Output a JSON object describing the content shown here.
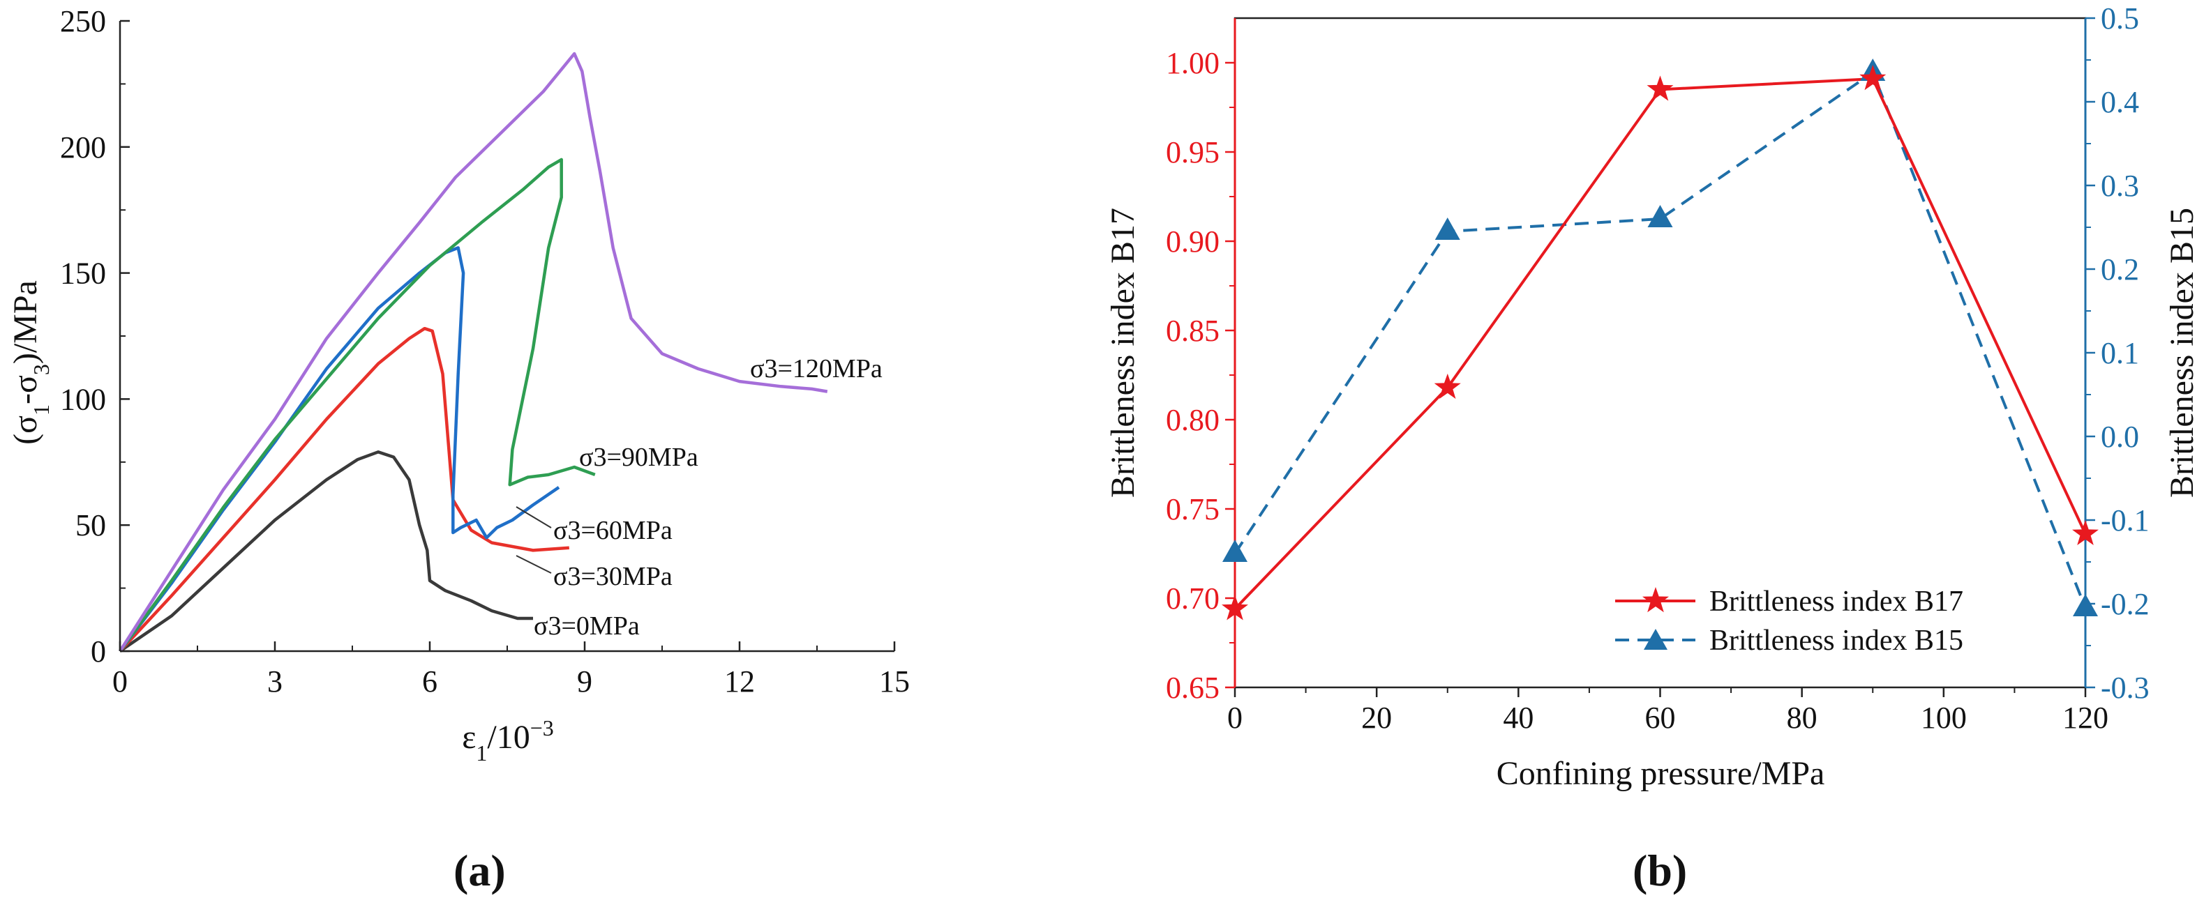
{
  "panels": {
    "a": "(a)",
    "b": "(b)"
  },
  "chart_data": [
    {
      "type": "line",
      "panel": "(a)",
      "title": "",
      "xlabel_main": "ε",
      "xlabel_sub": "1",
      "xlabel_rest": "/10",
      "xlabel_sup": "−3",
      "ylabel": "(σ1-σ3)/MPa",
      "ylabel_parts": {
        "open": "(σ",
        "sub1": "1",
        "mid": "-σ",
        "sub3": "3",
        "close": ")/MPa"
      },
      "xlim": [
        0,
        15
      ],
      "ylim": [
        0,
        250
      ],
      "xticks": [
        0,
        3,
        6,
        9,
        12,
        15
      ],
      "yticks": [
        0,
        50,
        100,
        150,
        200,
        250
      ],
      "legend": "none (inline labels)",
      "grid": false,
      "series": [
        {
          "name": "σ3=0MPa",
          "color": "#3a3a3a",
          "points": [
            [
              0,
              0
            ],
            [
              1,
              14
            ],
            [
              2,
              33
            ],
            [
              3,
              52
            ],
            [
              4,
              68
            ],
            [
              4.6,
              76
            ],
            [
              5,
              79
            ],
            [
              5.3,
              77
            ],
            [
              5.6,
              68
            ],
            [
              5.8,
              50
            ],
            [
              5.95,
              40
            ],
            [
              6,
              28
            ],
            [
              6.3,
              24
            ],
            [
              6.8,
              20
            ],
            [
              7.2,
              16
            ],
            [
              7.7,
              13
            ],
            [
              8,
              13
            ]
          ]
        },
        {
          "name": "σ3=30MPa",
          "color": "#e8312a",
          "points": [
            [
              0,
              0
            ],
            [
              1,
              22
            ],
            [
              2,
              45
            ],
            [
              3,
              68
            ],
            [
              4,
              92
            ],
            [
              5,
              114
            ],
            [
              5.6,
              124
            ],
            [
              5.9,
              128
            ],
            [
              6.05,
              127
            ],
            [
              6.25,
              110
            ],
            [
              6.45,
              60
            ],
            [
              6.8,
              48
            ],
            [
              7.2,
              43
            ],
            [
              8,
              40
            ],
            [
              8.7,
              41
            ]
          ]
        },
        {
          "name": "σ3=60MPa",
          "color": "#1f6fc8",
          "points": [
            [
              0,
              0
            ],
            [
              1,
              27
            ],
            [
              2,
              56
            ],
            [
              3,
              83
            ],
            [
              4,
              112
            ],
            [
              5,
              136
            ],
            [
              5.8,
              150
            ],
            [
              6.3,
              158
            ],
            [
              6.55,
              160
            ],
            [
              6.65,
              150
            ],
            [
              6.55,
              110
            ],
            [
              6.45,
              62
            ],
            [
              6.45,
              47
            ],
            [
              6.6,
              49
            ],
            [
              6.9,
              52
            ],
            [
              7.1,
              45
            ],
            [
              7.3,
              49
            ],
            [
              7.6,
              52
            ],
            [
              8,
              58
            ],
            [
              8.5,
              65
            ]
          ]
        },
        {
          "name": "σ3=90MPa",
          "color": "#2e9e52",
          "points": [
            [
              0,
              0
            ],
            [
              1,
              28
            ],
            [
              2,
              57
            ],
            [
              3,
              84
            ],
            [
              4,
              108
            ],
            [
              5,
              132
            ],
            [
              6,
              153
            ],
            [
              7,
              170
            ],
            [
              7.8,
              183
            ],
            [
              8.3,
              192
            ],
            [
              8.55,
              195
            ],
            [
              8.55,
              180
            ],
            [
              8.3,
              160
            ],
            [
              8,
              120
            ],
            [
              7.6,
              80
            ],
            [
              7.55,
              66
            ],
            [
              7.9,
              69
            ],
            [
              8.3,
              70
            ],
            [
              8.8,
              73
            ],
            [
              9.2,
              70
            ]
          ]
        },
        {
          "name": "σ3=120MPa",
          "color": "#a56ed9",
          "points": [
            [
              0,
              0
            ],
            [
              1,
              32
            ],
            [
              2,
              64
            ],
            [
              3,
              92
            ],
            [
              4,
              124
            ],
            [
              5,
              150
            ],
            [
              5.8,
              170
            ],
            [
              6.5,
              188
            ],
            [
              7.4,
              206
            ],
            [
              8.2,
              222
            ],
            [
              8.8,
              237
            ],
            [
              8.95,
              230
            ],
            [
              9.1,
              212
            ],
            [
              9.3,
              190
            ],
            [
              9.55,
              160
            ],
            [
              9.9,
              132
            ],
            [
              10.5,
              118
            ],
            [
              11.2,
              112
            ],
            [
              12,
              107
            ],
            [
              12.8,
              105
            ],
            [
              13.4,
              104
            ],
            [
              13.7,
              103
            ]
          ]
        }
      ],
      "annotations": [
        "σ3=120MPa",
        "σ3=90MPa",
        "σ3=60MPa",
        "σ3=30MPa",
        "σ3=0MPa"
      ]
    },
    {
      "type": "line",
      "panel": "(b)",
      "title": "",
      "xlabel": "Confining pressure/MPa",
      "ylabel_left": "Brittleness index B17",
      "ylabel_right": "Brittleness index B15",
      "xlim": [
        0,
        120
      ],
      "xticks": [
        0,
        20,
        40,
        60,
        80,
        100,
        120
      ],
      "ylim_left": [
        0.65,
        1.025
      ],
      "yticks_left": [
        "0.65",
        "0.70",
        "0.75",
        "0.80",
        "0.85",
        "0.90",
        "0.95",
        "1.00"
      ],
      "ylim_right": [
        -0.3,
        0.5
      ],
      "yticks_right": [
        "-0.3",
        "-0.2",
        "-0.1",
        "0.0",
        "0.1",
        "0.2",
        "0.3",
        "0.4",
        "0.5"
      ],
      "left_axis_color": "#e8191f",
      "right_axis_color": "#1f6fa8",
      "legend": "bottom-right",
      "grid": false,
      "x": [
        0,
        30,
        60,
        90,
        120
      ],
      "series": [
        {
          "name": "Brittleness index B17",
          "axis": "left",
          "color": "#e8191f",
          "marker": "star",
          "line": "solid",
          "values": [
            0.694,
            0.818,
            0.985,
            0.991,
            0.736
          ]
        },
        {
          "name": "Brittleness index B15",
          "axis": "right",
          "color": "#1f6fa8",
          "marker": "triangle",
          "line": "dashed",
          "values": [
            -0.14,
            0.245,
            0.26,
            0.435,
            -0.205
          ]
        }
      ]
    }
  ]
}
